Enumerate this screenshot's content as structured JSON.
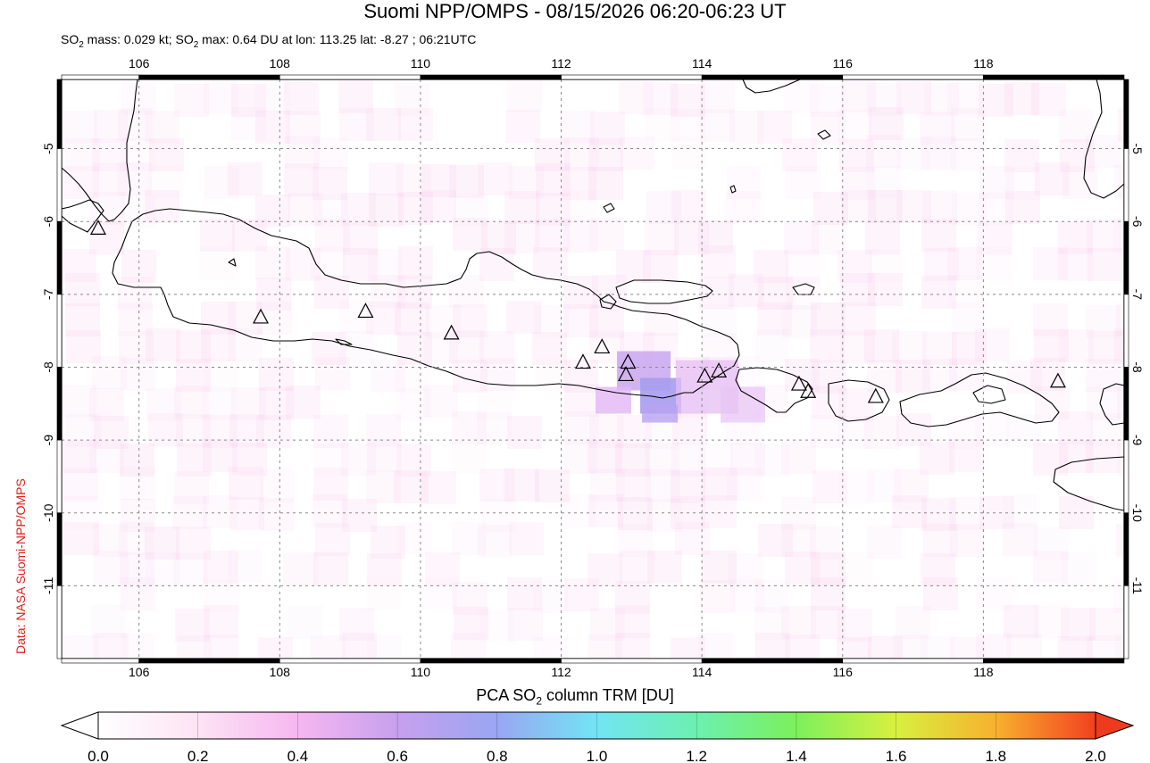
{
  "header": {
    "title": "Suomi NPP/OMPS - 08/15/2026 06:20-06:23 UT",
    "subtitle_pre": "SO",
    "subtitle_mid": " mass: 0.029 kt; SO",
    "subtitle_post": " max: 0.64 DU at lon: 113.25 lat: -8.27 ; 06:21UTC",
    "sub_2": "2"
  },
  "credit": "Data: NASA Suomi-NPP/OMPS",
  "colorbar": {
    "label_pre": "PCA SO",
    "label_sub": "2",
    "label_post": " column TRM [DU]",
    "ticks": [
      "0.0",
      "0.2",
      "0.4",
      "0.6",
      "0.8",
      "1.0",
      "1.2",
      "1.4",
      "1.6",
      "1.8",
      "2.0"
    ],
    "stops": [
      "#ffffff",
      "#fde3f4",
      "#f6b7f0",
      "#c7a0ee",
      "#9aa6f2",
      "#72e4f4",
      "#6cf0b0",
      "#7cf05c",
      "#d8f040",
      "#f7b12e",
      "#f24020"
    ]
  },
  "map": {
    "lon_ticks": [
      106,
      108,
      110,
      112,
      114,
      116,
      118
    ],
    "lat_ticks": [
      -5,
      -6,
      -7,
      -8,
      -9,
      -10,
      -11
    ],
    "lon_labels": [
      "106",
      "108",
      "110",
      "112",
      "114",
      "116",
      "118"
    ],
    "lat_labels": [
      "-5",
      "-6",
      "-7",
      "-8",
      "-9",
      "-10",
      "-11"
    ],
    "lon_range": [
      104.9,
      120.0
    ],
    "lat_range": [
      -12.0,
      -4.05
    ],
    "volcanoes": [
      {
        "lon": 105.42,
        "lat": -6.1
      },
      {
        "lon": 107.73,
        "lat": -7.32
      },
      {
        "lon": 109.22,
        "lat": -7.24
      },
      {
        "lon": 110.44,
        "lat": -7.54
      },
      {
        "lon": 112.31,
        "lat": -7.94
      },
      {
        "lon": 112.58,
        "lat": -7.73
      },
      {
        "lon": 112.95,
        "lat": -7.94
      },
      {
        "lon": 112.92,
        "lat": -8.11
      },
      {
        "lon": 114.04,
        "lat": -8.13
      },
      {
        "lon": 114.24,
        "lat": -8.06
      },
      {
        "lon": 115.38,
        "lat": -8.24
      },
      {
        "lon": 115.51,
        "lat": -8.34
      },
      {
        "lon": 116.47,
        "lat": -8.41
      },
      {
        "lon": 119.06,
        "lat": -8.2
      }
    ],
    "so2_max": {
      "lon": 113.25,
      "lat": -8.27,
      "value": 0.64
    }
  }
}
